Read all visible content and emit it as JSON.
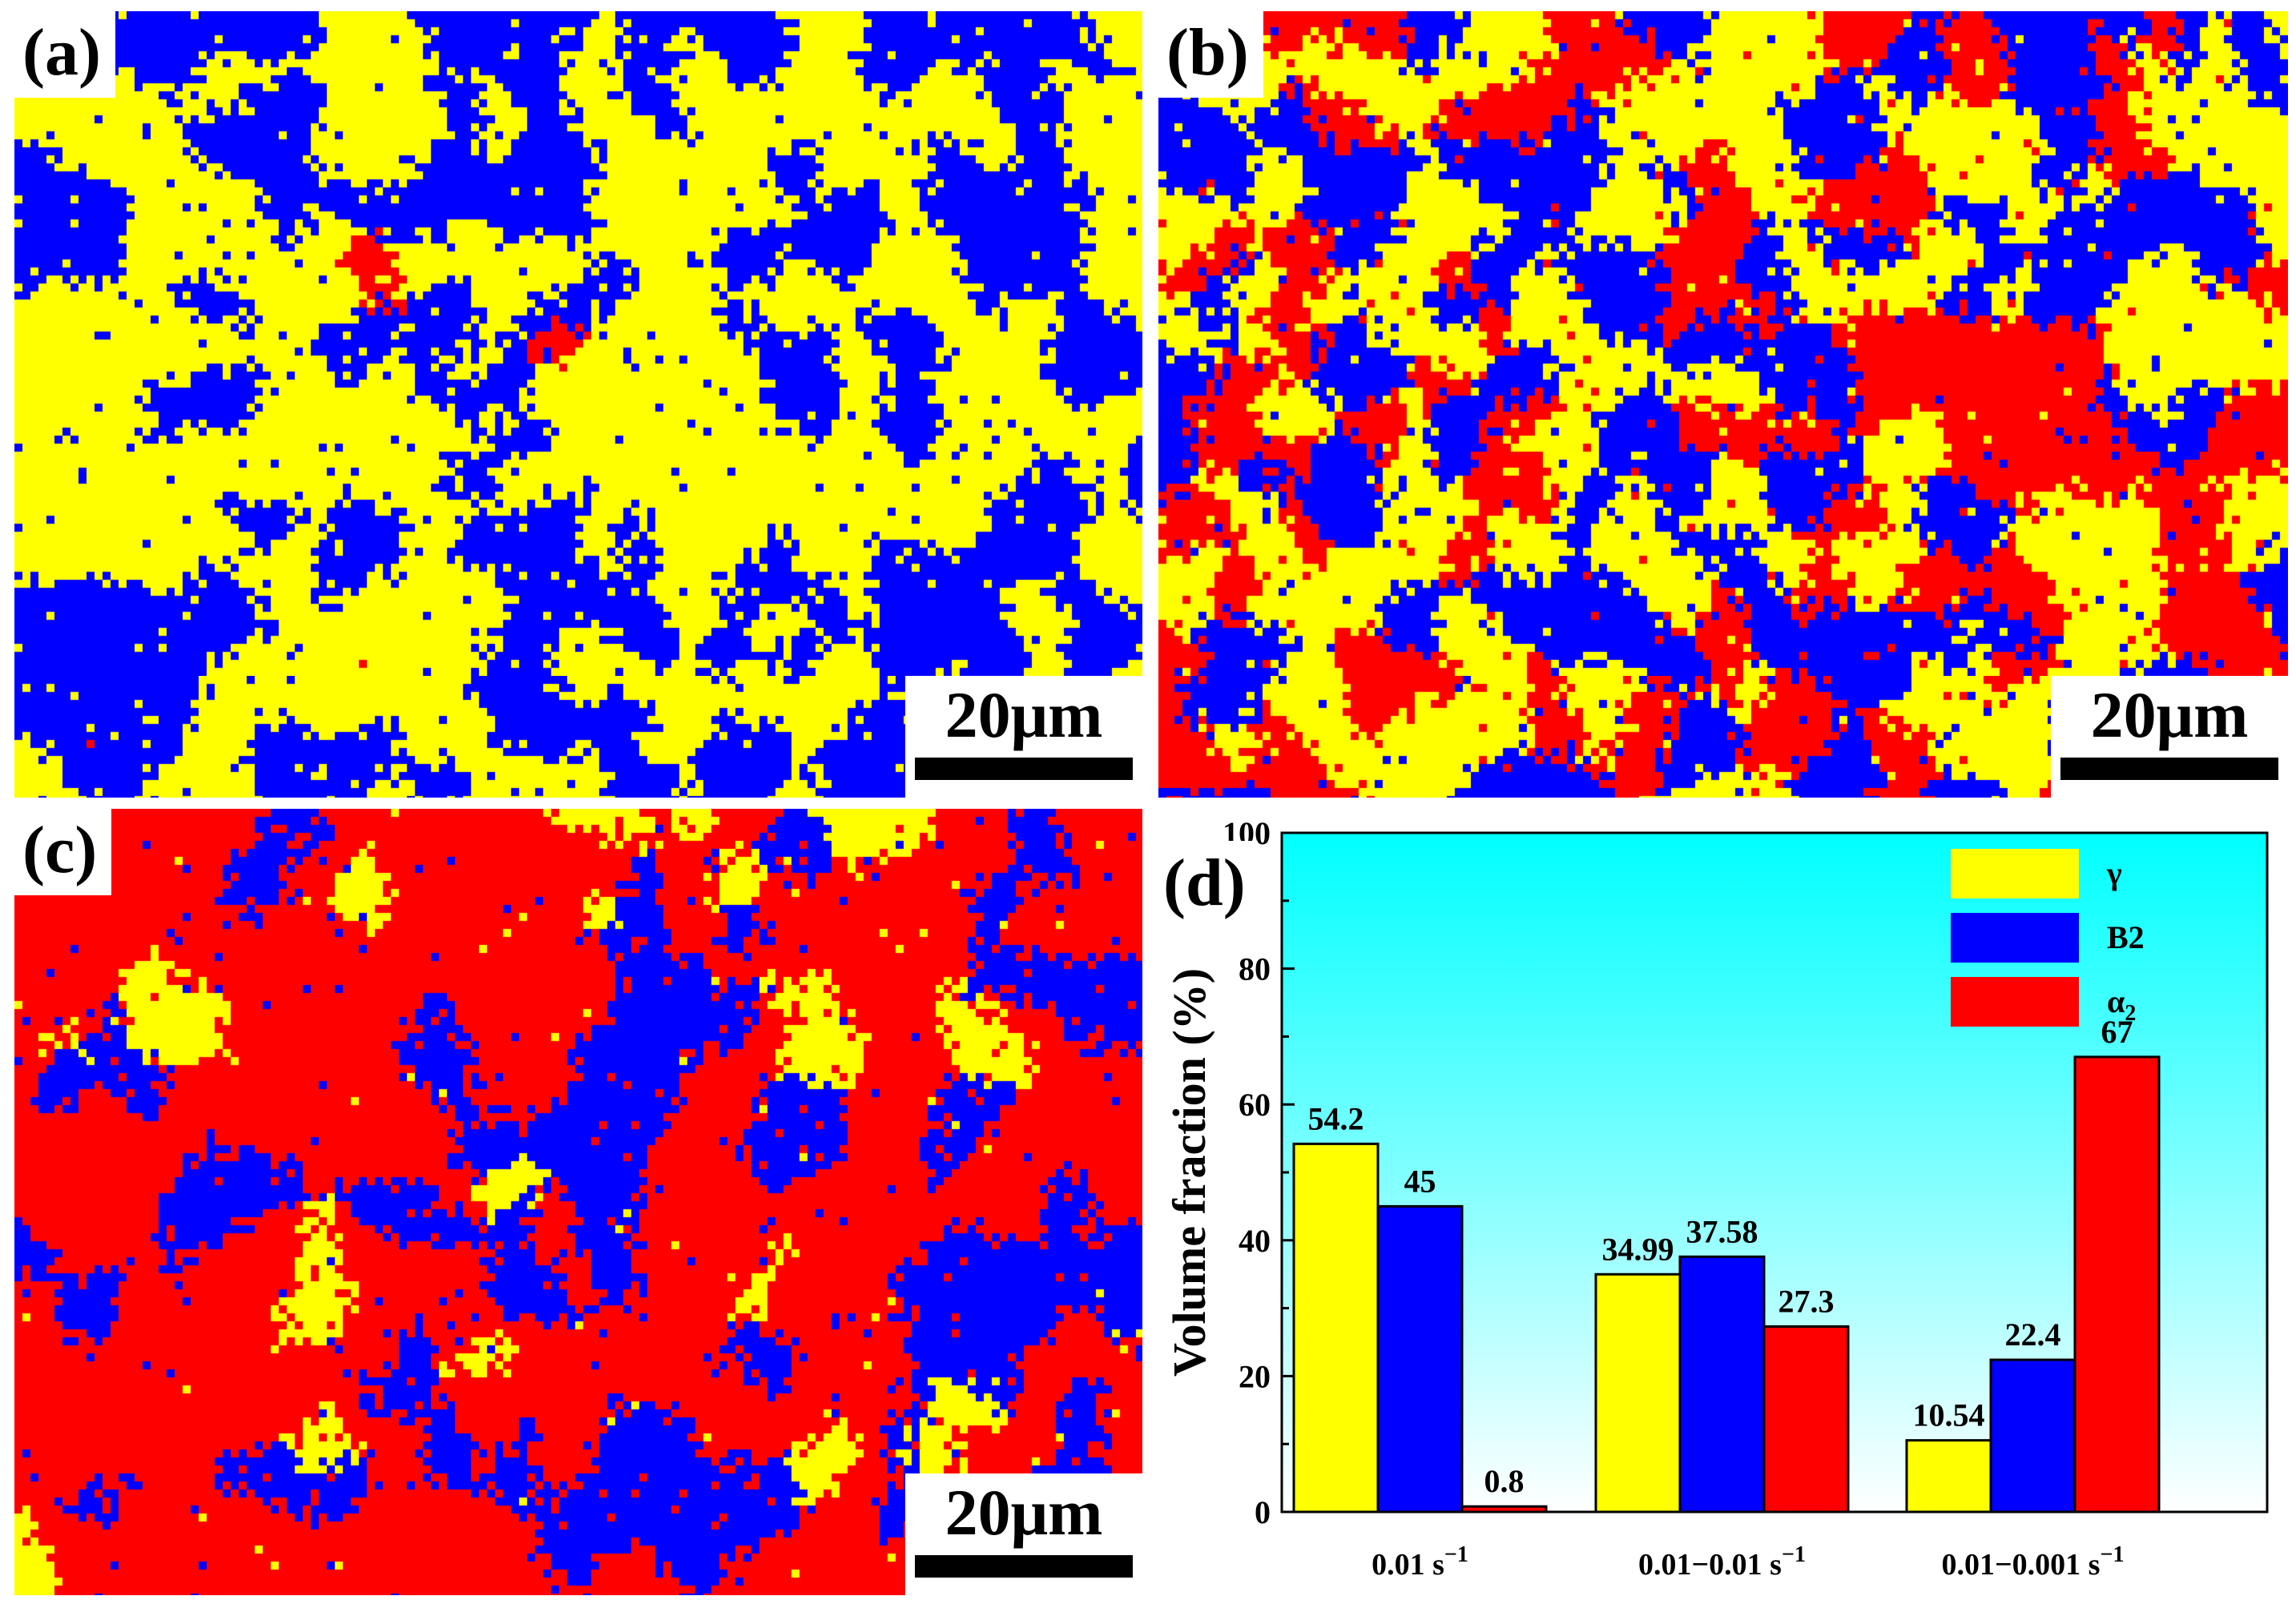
{
  "panels": {
    "a": {
      "label": "(a)",
      "scale_bar": "20μm",
      "seed": 11,
      "phase_weights": [
        0.542,
        0.45,
        0.008
      ]
    },
    "b": {
      "label": "(b)",
      "scale_bar": "20μm",
      "seed": 23,
      "phase_weights": [
        0.35,
        0.376,
        0.273
      ]
    },
    "c": {
      "label": "(c)",
      "scale_bar": "20μm",
      "seed": 37,
      "phase_weights": [
        0.105,
        0.224,
        0.67
      ]
    }
  },
  "colors": {
    "gamma": "#ffff00",
    "b2": "#0000ff",
    "alpha2": "#ff0000",
    "bg_top": "#00ffff",
    "bg_bottom": "#ffffff"
  },
  "chart_data": {
    "type": "bar",
    "panel_label": "(d)",
    "ylabel": "Volume fraction (%)",
    "ylim": [
      0,
      100
    ],
    "yticks": [
      0,
      20,
      40,
      60,
      80,
      100
    ],
    "categories": [
      "0.01 s",
      "0.01−0.01 s",
      "0.01−0.001 s"
    ],
    "category_superscript": "−1",
    "series": [
      {
        "name": "γ",
        "color": "#ffff00",
        "values": [
          54.2,
          34.99,
          10.54
        ],
        "labels": [
          "54.2",
          "34.99",
          "10.54"
        ]
      },
      {
        "name": "B2",
        "color": "#0000ff",
        "values": [
          45,
          37.58,
          22.4
        ],
        "labels": [
          "45",
          "37.58",
          "22.4"
        ]
      },
      {
        "name": "α",
        "subscript": "2",
        "color": "#ff0000",
        "values": [
          0.8,
          27.3,
          67
        ],
        "labels": [
          "0.8",
          "27.3",
          "67"
        ]
      }
    ],
    "legend_position": "top-right"
  }
}
